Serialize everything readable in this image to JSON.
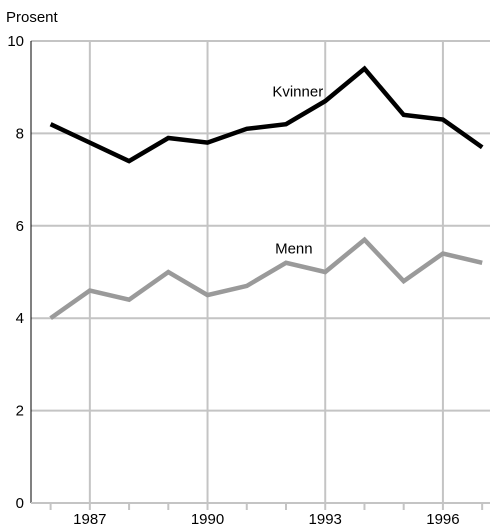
{
  "chart_data": {
    "type": "line",
    "ylabel": "Prosent",
    "ylim": [
      0,
      10
    ],
    "xlim": [
      1985.5,
      1997.2
    ],
    "y_ticks": [
      0,
      2,
      4,
      6,
      8,
      10
    ],
    "x_ticks": [
      1987,
      1990,
      1993,
      1996
    ],
    "grid": true,
    "x": [
      1986,
      1987,
      1988,
      1989,
      1990,
      1991,
      1992,
      1993,
      1994,
      1995,
      1996,
      1997
    ],
    "series": [
      {
        "name": "Kvinner",
        "color": "#000000",
        "values": [
          8.2,
          7.8,
          7.4,
          7.9,
          7.8,
          8.1,
          8.2,
          8.7,
          9.4,
          8.4,
          8.3,
          7.7
        ]
      },
      {
        "name": "Menn",
        "color": "#9a9a9a",
        "values": [
          4.0,
          4.6,
          4.4,
          5.0,
          4.5,
          4.7,
          5.2,
          5.0,
          5.7,
          4.8,
          5.4,
          5.2
        ]
      }
    ]
  },
  "colors": {
    "grid": "#c4c4c4",
    "axis": "#000000"
  }
}
